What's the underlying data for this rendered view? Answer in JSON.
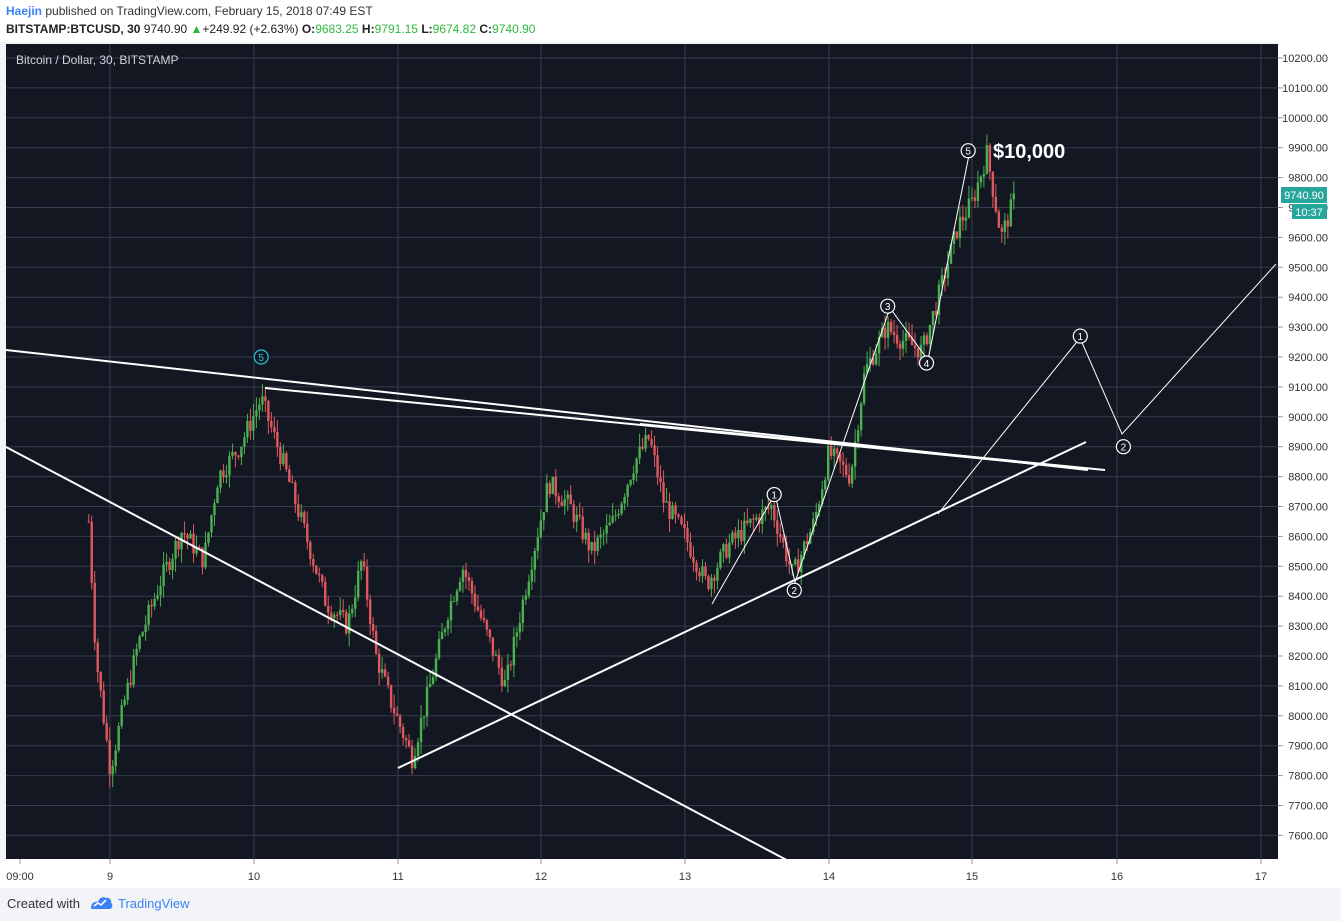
{
  "header": {
    "author": "Haejin",
    "published": "published on TradingView.com, February 15, 2018 07:49 EST",
    "symbol": "BITSTAMP:BTCUSD, 30",
    "last": "9740.90",
    "change_arrow": "▲",
    "change": "+249.92 (+2.63%)",
    "o_label": "O:",
    "o_value": "9683.25",
    "h_label": "H:",
    "h_value": "9791.15",
    "l_label": "L:",
    "l_value": "9674.82",
    "c_label": "C:",
    "c_value": "9740.90"
  },
  "chart_data": {
    "type": "candlestick",
    "title": "Bitcoin / Dollar, 30, BITSTAMP",
    "annotation": "$10,000",
    "ylim": [
      7500,
      10250
    ],
    "y_ticks": [
      "10200.00",
      "10100.00",
      "10000.00",
      "9900.00",
      "9800.00",
      "9700.00",
      "9600.00",
      "9500.00",
      "9400.00",
      "9300.00",
      "9200.00",
      "9100.00",
      "9000.00",
      "8900.00",
      "8800.00",
      "8700.00",
      "8600.00",
      "8500.00",
      "8400.00",
      "8300.00",
      "8200.00",
      "8100.00",
      "8000.00",
      "7900.00",
      "7800.00",
      "7700.00",
      "7600.00"
    ],
    "x_ticks": [
      "09:00",
      "9",
      "10",
      "11",
      "12",
      "13",
      "14",
      "15",
      "16",
      "17"
    ],
    "last_price_label": "9740.90",
    "countdown_label": "10:37",
    "grid": true,
    "colors": {
      "background": "#131722",
      "grid": "#363c4e",
      "up": "#4caf50",
      "down": "#e0585f",
      "drawing": "#ffffff",
      "wave_accent": "#26c6da",
      "price_badge": "#26a69a"
    },
    "series": [
      {
        "day": 8.85,
        "price": 8650
      },
      {
        "day": 8.9,
        "price": 8200
      },
      {
        "day": 9.0,
        "price": 7820
      },
      {
        "day": 9.1,
        "price": 8050
      },
      {
        "day": 9.2,
        "price": 8250
      },
      {
        "day": 9.35,
        "price": 8450
      },
      {
        "day": 9.5,
        "price": 8620
      },
      {
        "day": 9.65,
        "price": 8520
      },
      {
        "day": 9.75,
        "price": 8800
      },
      {
        "day": 9.9,
        "price": 8900
      },
      {
        "day": 10.05,
        "price": 9060
      },
      {
        "day": 10.2,
        "price": 8850
      },
      {
        "day": 10.35,
        "price": 8620
      },
      {
        "day": 10.5,
        "price": 8380
      },
      {
        "day": 10.65,
        "price": 8300
      },
      {
        "day": 10.75,
        "price": 8520
      },
      {
        "day": 10.85,
        "price": 8200
      },
      {
        "day": 10.95,
        "price": 8050
      },
      {
        "day": 11.1,
        "price": 7860
      },
      {
        "day": 11.25,
        "price": 8150
      },
      {
        "day": 11.35,
        "price": 8350
      },
      {
        "day": 11.45,
        "price": 8500
      },
      {
        "day": 11.6,
        "price": 8300
      },
      {
        "day": 11.75,
        "price": 8100
      },
      {
        "day": 11.9,
        "price": 8450
      },
      {
        "day": 12.05,
        "price": 8780
      },
      {
        "day": 12.2,
        "price": 8700
      },
      {
        "day": 12.35,
        "price": 8550
      },
      {
        "day": 12.5,
        "price": 8650
      },
      {
        "day": 12.65,
        "price": 8850
      },
      {
        "day": 12.75,
        "price": 8930
      },
      {
        "day": 12.85,
        "price": 8720
      },
      {
        "day": 13.0,
        "price": 8600
      },
      {
        "day": 13.15,
        "price": 8440
      },
      {
        "day": 13.3,
        "price": 8570
      },
      {
        "day": 13.45,
        "price": 8640
      },
      {
        "day": 13.6,
        "price": 8700
      },
      {
        "day": 13.75,
        "price": 8470
      },
      {
        "day": 13.9,
        "price": 8650
      },
      {
        "day": 14.0,
        "price": 8880
      },
      {
        "day": 14.15,
        "price": 8800
      },
      {
        "day": 14.25,
        "price": 9150
      },
      {
        "day": 14.4,
        "price": 9300
      },
      {
        "day": 14.5,
        "price": 9260
      },
      {
        "day": 14.65,
        "price": 9220
      },
      {
        "day": 14.75,
        "price": 9380
      },
      {
        "day": 14.9,
        "price": 9640
      },
      {
        "day": 15.0,
        "price": 9720
      },
      {
        "day": 15.1,
        "price": 9880
      },
      {
        "day": 15.2,
        "price": 9600
      },
      {
        "day": 15.3,
        "price": 9740
      }
    ],
    "wave_labels": [
      {
        "label": "5",
        "day": 10.05,
        "price": 9200,
        "accent": true
      },
      {
        "label": "1",
        "day": 13.62,
        "price": 8740
      },
      {
        "label": "2",
        "day": 13.76,
        "price": 8420
      },
      {
        "label": "3",
        "day": 14.41,
        "price": 9370
      },
      {
        "label": "4",
        "day": 14.68,
        "price": 9180
      },
      {
        "label": "5",
        "day": 14.97,
        "price": 9890
      },
      {
        "label": "1",
        "day": 15.75,
        "price": 9270
      },
      {
        "label": "2",
        "day": 16.05,
        "price": 8900
      }
    ]
  }
}
